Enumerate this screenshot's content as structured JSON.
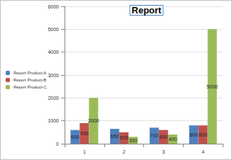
{
  "chart_data": {
    "type": "bar",
    "title": "Report",
    "categories": [
      "1",
      "2",
      "3",
      "4"
    ],
    "series": [
      {
        "name": "Report Product-A",
        "color": "#4f81bd",
        "values": [
          600,
          650,
          700,
          800
        ]
      },
      {
        "name": "Report Product-B",
        "color": "#c0504d",
        "values": [
          900,
          500,
          600,
          800
        ]
      },
      {
        "name": "Report Product-C",
        "color": "#9bbb59",
        "values": [
          2000,
          300,
          400,
          5000
        ]
      }
    ],
    "ylim": [
      0,
      6000
    ],
    "yticks": [
      0,
      1000,
      2000,
      3000,
      4000,
      5000,
      6000
    ],
    "grid": true,
    "legend": "left",
    "data_labels": true
  }
}
